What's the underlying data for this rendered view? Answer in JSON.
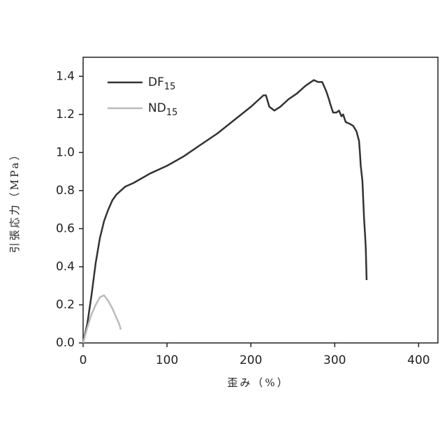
{
  "chart_data": {
    "type": "line",
    "x_label": "歪み（%）",
    "y_label": "引張応力（MPa）",
    "xlim": [
      0,
      423
    ],
    "xticks": [
      0,
      100,
      200,
      300,
      400
    ],
    "ylim": [
      0,
      1.5
    ],
    "yticks": [
      {
        "value": 0,
        "label": "0.0"
      },
      0.2,
      0.4,
      0.6,
      0.8,
      {
        "value": 1,
        "label": "1.0"
      },
      1.2,
      1.4
    ],
    "legend": "upper left",
    "series": [
      {
        "name": "DF15",
        "color": "#333333",
        "x": [
          0,
          5,
          10,
          15,
          20,
          25,
          30,
          35,
          40,
          50,
          60,
          80,
          100,
          120,
          140,
          160,
          180,
          200,
          215,
          218,
          222,
          228,
          235,
          245,
          255,
          265,
          275,
          280,
          285,
          290,
          293,
          295,
          298,
          302,
          305,
          308,
          310,
          313,
          318,
          322,
          326,
          329,
          330,
          331,
          333,
          334,
          335,
          336,
          337,
          338
        ],
        "values": [
          0,
          0.1,
          0.25,
          0.42,
          0.55,
          0.64,
          0.7,
          0.75,
          0.78,
          0.82,
          0.84,
          0.89,
          0.93,
          0.98,
          1.04,
          1.1,
          1.17,
          1.24,
          1.3,
          1.3,
          1.24,
          1.22,
          1.24,
          1.28,
          1.31,
          1.35,
          1.38,
          1.37,
          1.37,
          1.32,
          1.28,
          1.25,
          1.21,
          1.21,
          1.22,
          1.19,
          1.2,
          1.16,
          1.15,
          1.14,
          1.11,
          1.06,
          1.0,
          0.93,
          0.85,
          0.75,
          0.65,
          0.58,
          0.5,
          0.33
        ]
      },
      {
        "name": "ND15",
        "color": "#bbbbbb",
        "x": [
          0,
          5,
          10,
          15,
          20,
          25,
          30,
          35,
          40,
          43,
          45
        ],
        "values": [
          0,
          0.08,
          0.15,
          0.2,
          0.24,
          0.25,
          0.22,
          0.18,
          0.13,
          0.1,
          0.07
        ]
      }
    ]
  }
}
